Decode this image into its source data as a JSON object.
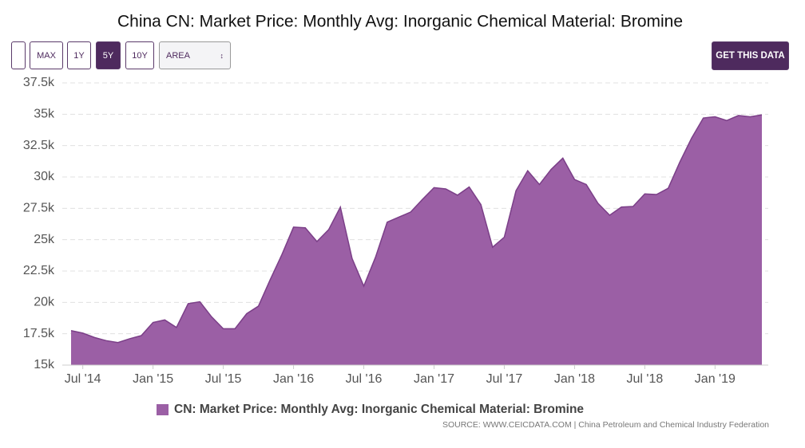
{
  "toolbar": {
    "buttons": [
      "MAX",
      "1Y",
      "5Y",
      "10Y"
    ],
    "active": "5Y",
    "select": "AREA",
    "cta": "GET THIS DATA"
  },
  "chart_data": {
    "type": "area",
    "title": "China CN: Market Price: Monthly Avg: Inorganic Chemical Material: Bromine",
    "x": [
      "2014-06",
      "2014-07",
      "2014-08",
      "2014-09",
      "2014-10",
      "2014-11",
      "2014-12",
      "2015-01",
      "2015-02",
      "2015-03",
      "2015-04",
      "2015-05",
      "2015-06",
      "2015-07",
      "2015-08",
      "2015-09",
      "2015-10",
      "2015-11",
      "2015-12",
      "2016-01",
      "2016-02",
      "2016-03",
      "2016-04",
      "2016-05",
      "2016-06",
      "2016-07",
      "2016-08",
      "2016-09",
      "2016-10",
      "2016-11",
      "2016-12",
      "2017-01",
      "2017-02",
      "2017-03",
      "2017-04",
      "2017-05",
      "2017-06",
      "2017-07",
      "2017-08",
      "2017-09",
      "2017-10",
      "2017-11",
      "2017-12",
      "2018-01",
      "2018-02",
      "2018-03",
      "2018-04",
      "2018-05",
      "2018-06",
      "2018-07",
      "2018-08",
      "2018-09",
      "2018-10",
      "2018-11",
      "2018-12",
      "2019-01",
      "2019-02",
      "2019-03",
      "2019-04",
      "2019-05"
    ],
    "series": [
      {
        "name": "CN: Market Price: Monthly Avg: Inorganic Chemical Material: Bromine",
        "color": "#9b5fa5",
        "line_color": "#7b3f88",
        "values": [
          17750,
          17550,
          17200,
          16950,
          16800,
          17100,
          17350,
          18400,
          18600,
          18000,
          19900,
          20050,
          18850,
          17900,
          17900,
          19100,
          19700,
          21800,
          23800,
          26000,
          25950,
          24850,
          25800,
          27600,
          23500,
          21300,
          23600,
          26400,
          26800,
          27200,
          28200,
          29150,
          29050,
          28550,
          29200,
          27800,
          24400,
          25200,
          28900,
          30500,
          29400,
          30600,
          31500,
          29800,
          29400,
          27900,
          26950,
          27600,
          27650,
          28650,
          28600,
          29100,
          31200,
          33100,
          34700,
          34800,
          34500,
          34900,
          34800,
          34950
        ]
      }
    ],
    "ylim": [
      15000,
      37500
    ],
    "yticks": [
      {
        "value": 15000,
        "label": "15k"
      },
      {
        "value": 17500,
        "label": "17.5k"
      },
      {
        "value": 20000,
        "label": "20k"
      },
      {
        "value": 22500,
        "label": "22.5k"
      },
      {
        "value": 25000,
        "label": "25k"
      },
      {
        "value": 27500,
        "label": "27.5k"
      },
      {
        "value": 30000,
        "label": "30k"
      },
      {
        "value": 32500,
        "label": "32.5k"
      },
      {
        "value": 35000,
        "label": "35k"
      },
      {
        "value": 37500,
        "label": "37.5k"
      }
    ],
    "xticks": [
      {
        "value": "2014-07",
        "label": "Jul '14"
      },
      {
        "value": "2015-01",
        "label": "Jan '15"
      },
      {
        "value": "2015-07",
        "label": "Jul '15"
      },
      {
        "value": "2016-01",
        "label": "Jan '16"
      },
      {
        "value": "2016-07",
        "label": "Jul '16"
      },
      {
        "value": "2017-01",
        "label": "Jan '17"
      },
      {
        "value": "2017-07",
        "label": "Jul '17"
      },
      {
        "value": "2018-01",
        "label": "Jan '18"
      },
      {
        "value": "2018-07",
        "label": "Jul '18"
      },
      {
        "value": "2019-01",
        "label": "Jan '19"
      }
    ],
    "grid": true,
    "source": "SOURCE: WWW.CEICDATA.COM | China Petroleum and Chemical Industry Federation"
  }
}
